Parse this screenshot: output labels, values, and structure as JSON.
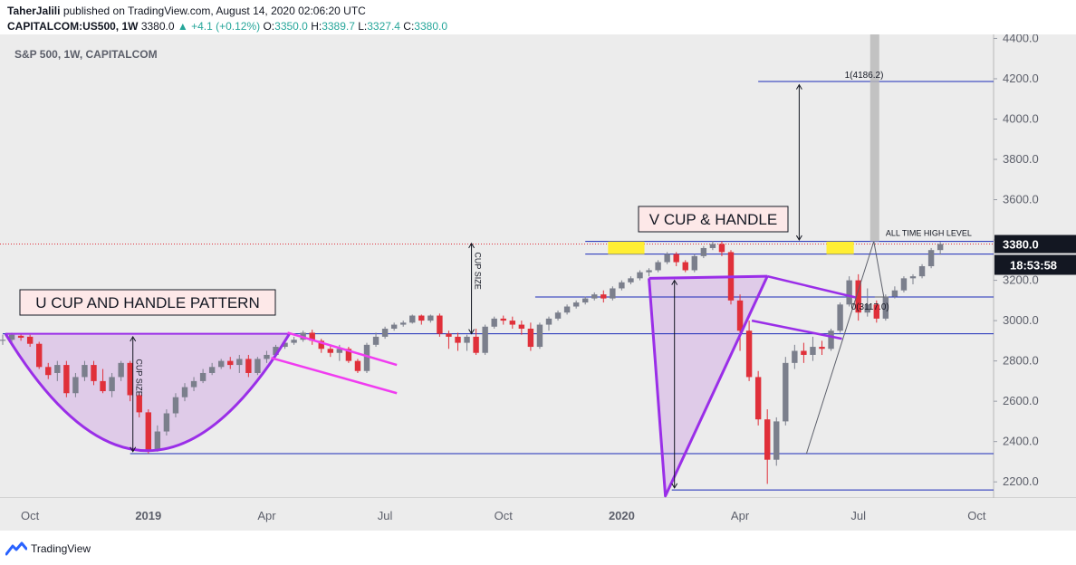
{
  "header": {
    "author": "TaherJalili",
    "published_text": " published on TradingView.com, August 14, 2020 02:06:20 UTC",
    "symbol": "CAPITALCOM:US500, 1W",
    "last": "3380.0",
    "change": "▲ +4.1 (+0.12%)",
    "o_label": "O:",
    "o": "3350.0",
    "h_label": "H:",
    "h": "3389.7",
    "l_label": "L:",
    "l": "3327.4",
    "c_label": "C:",
    "c": "3380.0"
  },
  "colors": {
    "up_candle": "#7b7f8c",
    "down_candle": "#e0303a",
    "pattern": "#9a2ee8",
    "pattern_fill": "#d7b6e6",
    "channel": "#f03cf0",
    "level_line": "#1a2ab8",
    "highlight": "#ffee33",
    "panel_bg": "#ececec",
    "price_tag": "#131722"
  },
  "chart_data": {
    "type": "candlestick",
    "title": "S&P 500, 1W, CAPITALCOM",
    "y_axis": {
      "ticks": [
        "4400.0",
        "4200.0",
        "4000.0",
        "3800.0",
        "3600.0",
        "3400.0",
        "3200.0",
        "3000.0",
        "2800.0",
        "2600.0",
        "2400.0",
        "2200.0"
      ],
      "ylim": [
        2120,
        4420
      ],
      "last_price_label": "3380.0",
      "countdown_label": "18:53:58"
    },
    "x_axis": {
      "ticks": [
        {
          "label": "Oct",
          "bold": false,
          "week": 3
        },
        {
          "label": "2019",
          "bold": true,
          "week": 16
        },
        {
          "label": "Apr",
          "bold": false,
          "week": 29
        },
        {
          "label": "Jul",
          "bold": false,
          "week": 42
        },
        {
          "label": "Oct",
          "bold": false,
          "week": 55
        },
        {
          "label": "2020",
          "bold": true,
          "week": 68
        },
        {
          "label": "Apr",
          "bold": false,
          "week": 81
        },
        {
          "label": "Jul",
          "bold": false,
          "week": 94
        },
        {
          "label": "Oct",
          "bold": false,
          "week": 107
        }
      ]
    },
    "candles": [
      {
        "o": 2900,
        "h": 2930,
        "l": 2880,
        "c": 2905
      },
      {
        "o": 2905,
        "h": 2940,
        "l": 2895,
        "c": 2930
      },
      {
        "o": 2925,
        "h": 2935,
        "l": 2900,
        "c": 2915
      },
      {
        "o": 2920,
        "h": 2930,
        "l": 2870,
        "c": 2885
      },
      {
        "o": 2885,
        "h": 2895,
        "l": 2760,
        "c": 2770
      },
      {
        "o": 2770,
        "h": 2790,
        "l": 2710,
        "c": 2730
      },
      {
        "o": 2740,
        "h": 2800,
        "l": 2700,
        "c": 2780
      },
      {
        "o": 2780,
        "h": 2800,
        "l": 2620,
        "c": 2640
      },
      {
        "o": 2640,
        "h": 2740,
        "l": 2620,
        "c": 2720
      },
      {
        "o": 2720,
        "h": 2800,
        "l": 2700,
        "c": 2780
      },
      {
        "o": 2780,
        "h": 2800,
        "l": 2680,
        "c": 2700
      },
      {
        "o": 2700,
        "h": 2760,
        "l": 2640,
        "c": 2650
      },
      {
        "o": 2650,
        "h": 2740,
        "l": 2620,
        "c": 2720
      },
      {
        "o": 2720,
        "h": 2800,
        "l": 2700,
        "c": 2790
      },
      {
        "o": 2790,
        "h": 2800,
        "l": 2600,
        "c": 2630
      },
      {
        "o": 2630,
        "h": 2640,
        "l": 2520,
        "c": 2545
      },
      {
        "o": 2545,
        "h": 2560,
        "l": 2340,
        "c": 2360
      },
      {
        "o": 2360,
        "h": 2480,
        "l": 2350,
        "c": 2450
      },
      {
        "o": 2450,
        "h": 2560,
        "l": 2430,
        "c": 2540
      },
      {
        "o": 2540,
        "h": 2640,
        "l": 2520,
        "c": 2620
      },
      {
        "o": 2620,
        "h": 2690,
        "l": 2600,
        "c": 2670
      },
      {
        "o": 2670,
        "h": 2720,
        "l": 2650,
        "c": 2700
      },
      {
        "o": 2700,
        "h": 2760,
        "l": 2690,
        "c": 2740
      },
      {
        "o": 2740,
        "h": 2790,
        "l": 2730,
        "c": 2770
      },
      {
        "o": 2770,
        "h": 2810,
        "l": 2760,
        "c": 2800
      },
      {
        "o": 2800,
        "h": 2820,
        "l": 2760,
        "c": 2780
      },
      {
        "o": 2780,
        "h": 2830,
        "l": 2740,
        "c": 2810
      },
      {
        "o": 2810,
        "h": 2830,
        "l": 2720,
        "c": 2740
      },
      {
        "o": 2740,
        "h": 2820,
        "l": 2730,
        "c": 2810
      },
      {
        "o": 2810,
        "h": 2850,
        "l": 2790,
        "c": 2830
      },
      {
        "o": 2830,
        "h": 2880,
        "l": 2820,
        "c": 2870
      },
      {
        "o": 2870,
        "h": 2900,
        "l": 2860,
        "c": 2890
      },
      {
        "o": 2890,
        "h": 2920,
        "l": 2880,
        "c": 2905
      },
      {
        "o": 2905,
        "h": 2950,
        "l": 2895,
        "c": 2940
      },
      {
        "o": 2940,
        "h": 2955,
        "l": 2880,
        "c": 2900
      },
      {
        "o": 2900,
        "h": 2910,
        "l": 2840,
        "c": 2860
      },
      {
        "o": 2860,
        "h": 2880,
        "l": 2820,
        "c": 2840
      },
      {
        "o": 2840,
        "h": 2880,
        "l": 2800,
        "c": 2860
      },
      {
        "o": 2860,
        "h": 2870,
        "l": 2790,
        "c": 2800
      },
      {
        "o": 2800,
        "h": 2810,
        "l": 2740,
        "c": 2750
      },
      {
        "o": 2750,
        "h": 2890,
        "l": 2740,
        "c": 2880
      },
      {
        "o": 2880,
        "h": 2940,
        "l": 2870,
        "c": 2920
      },
      {
        "o": 2920,
        "h": 2970,
        "l": 2910,
        "c": 2960
      },
      {
        "o": 2960,
        "h": 2990,
        "l": 2950,
        "c": 2980
      },
      {
        "o": 2980,
        "h": 3000,
        "l": 2970,
        "c": 2990
      },
      {
        "o": 2990,
        "h": 3030,
        "l": 2985,
        "c": 3025
      },
      {
        "o": 3025,
        "h": 3030,
        "l": 2980,
        "c": 3000
      },
      {
        "o": 3000,
        "h": 3030,
        "l": 2990,
        "c": 3025
      },
      {
        "o": 3025,
        "h": 3035,
        "l": 2920,
        "c": 2935
      },
      {
        "o": 2935,
        "h": 2950,
        "l": 2860,
        "c": 2920
      },
      {
        "o": 2920,
        "h": 2940,
        "l": 2850,
        "c": 2890
      },
      {
        "o": 2890,
        "h": 2930,
        "l": 2850,
        "c": 2920
      },
      {
        "o": 2920,
        "h": 2960,
        "l": 2830,
        "c": 2840
      },
      {
        "o": 2840,
        "h": 2980,
        "l": 2830,
        "c": 2970
      },
      {
        "o": 2970,
        "h": 3020,
        "l": 2960,
        "c": 3010
      },
      {
        "o": 3010,
        "h": 3025,
        "l": 2980,
        "c": 3000
      },
      {
        "o": 3000,
        "h": 3020,
        "l": 2960,
        "c": 2980
      },
      {
        "o": 2980,
        "h": 3000,
        "l": 2930,
        "c": 2960
      },
      {
        "o": 2960,
        "h": 2990,
        "l": 2850,
        "c": 2870
      },
      {
        "o": 2870,
        "h": 2990,
        "l": 2860,
        "c": 2980
      },
      {
        "o": 2980,
        "h": 3020,
        "l": 2950,
        "c": 3010
      },
      {
        "o": 3010,
        "h": 3050,
        "l": 3000,
        "c": 3040
      },
      {
        "o": 3040,
        "h": 3080,
        "l": 3030,
        "c": 3070
      },
      {
        "o": 3070,
        "h": 3100,
        "l": 3060,
        "c": 3090
      },
      {
        "o": 3090,
        "h": 3120,
        "l": 3080,
        "c": 3110
      },
      {
        "o": 3110,
        "h": 3140,
        "l": 3100,
        "c": 3130
      },
      {
        "o": 3130,
        "h": 3150,
        "l": 3090,
        "c": 3110
      },
      {
        "o": 3110,
        "h": 3170,
        "l": 3100,
        "c": 3160
      },
      {
        "o": 3160,
        "h": 3200,
        "l": 3150,
        "c": 3190
      },
      {
        "o": 3190,
        "h": 3220,
        "l": 3180,
        "c": 3210
      },
      {
        "o": 3210,
        "h": 3250,
        "l": 3200,
        "c": 3240
      },
      {
        "o": 3240,
        "h": 3260,
        "l": 3220,
        "c": 3250
      },
      {
        "o": 3250,
        "h": 3300,
        "l": 3240,
        "c": 3290
      },
      {
        "o": 3290,
        "h": 3340,
        "l": 3280,
        "c": 3330
      },
      {
        "o": 3330,
        "h": 3340,
        "l": 3270,
        "c": 3290
      },
      {
        "o": 3290,
        "h": 3300,
        "l": 3240,
        "c": 3250
      },
      {
        "o": 3250,
        "h": 3330,
        "l": 3240,
        "c": 3320
      },
      {
        "o": 3320,
        "h": 3370,
        "l": 3310,
        "c": 3360
      },
      {
        "o": 3360,
        "h": 3395,
        "l": 3350,
        "c": 3380
      },
      {
        "o": 3380,
        "h": 3393,
        "l": 3320,
        "c": 3340
      },
      {
        "o": 3340,
        "h": 3350,
        "l": 3080,
        "c": 3100
      },
      {
        "o": 3100,
        "h": 3130,
        "l": 2850,
        "c": 2950
      },
      {
        "o": 2950,
        "h": 3000,
        "l": 2700,
        "c": 2720
      },
      {
        "o": 2720,
        "h": 2750,
        "l": 2480,
        "c": 2510
      },
      {
        "o": 2510,
        "h": 2560,
        "l": 2190,
        "c": 2310
      },
      {
        "o": 2310,
        "h": 2520,
        "l": 2280,
        "c": 2500
      },
      {
        "o": 2500,
        "h": 2820,
        "l": 2480,
        "c": 2790
      },
      {
        "o": 2790,
        "h": 2880,
        "l": 2760,
        "c": 2850
      },
      {
        "o": 2850,
        "h": 2890,
        "l": 2790,
        "c": 2830
      },
      {
        "o": 2830,
        "h": 2920,
        "l": 2800,
        "c": 2870
      },
      {
        "o": 2870,
        "h": 2900,
        "l": 2830,
        "c": 2860
      },
      {
        "o": 2860,
        "h": 2960,
        "l": 2850,
        "c": 2950
      },
      {
        "o": 2950,
        "h": 3090,
        "l": 2940,
        "c": 3080
      },
      {
        "o": 3080,
        "h": 3220,
        "l": 3070,
        "c": 3200
      },
      {
        "o": 3200,
        "h": 3230,
        "l": 3000,
        "c": 3040
      },
      {
        "o": 3040,
        "h": 3160,
        "l": 3020,
        "c": 3080
      },
      {
        "o": 3080,
        "h": 3100,
        "l": 2990,
        "c": 3010
      },
      {
        "o": 3010,
        "h": 3130,
        "l": 3000,
        "c": 3120
      },
      {
        "o": 3120,
        "h": 3170,
        "l": 3110,
        "c": 3150
      },
      {
        "o": 3150,
        "h": 3220,
        "l": 3140,
        "c": 3210
      },
      {
        "o": 3210,
        "h": 3230,
        "l": 3180,
        "c": 3220
      },
      {
        "o": 3220,
        "h": 3280,
        "l": 3210,
        "c": 3270
      },
      {
        "o": 3270,
        "h": 3360,
        "l": 3260,
        "c": 3350
      },
      {
        "o": 3350,
        "h": 3390,
        "l": 3327,
        "c": 3380
      }
    ],
    "levels": [
      {
        "price": 3380,
        "style": "dotted-red",
        "label": "3380.0"
      },
      {
        "price": 4186.2,
        "label": "1(4186.2)"
      },
      {
        "price": 3117.0,
        "label": "0(3117.0)"
      },
      {
        "price": 3393,
        "label": "ALL TIME HIGH LEVEL"
      },
      {
        "price": 3330,
        "label": ""
      },
      {
        "price": 2935,
        "label": ""
      },
      {
        "price": 2340,
        "label": ""
      },
      {
        "price": 2160,
        "label": ""
      }
    ],
    "annotations": [
      {
        "text": "U CUP AND HANDLE PATTERN",
        "kind": "label-box"
      },
      {
        "text": "V CUP & HANDLE",
        "kind": "label-box"
      },
      {
        "text": "CUP SIZE",
        "kind": "vertical-text"
      },
      {
        "text": "CUP SIZE",
        "kind": "vertical-text"
      }
    ]
  },
  "footer": {
    "brand": "TradingView"
  }
}
